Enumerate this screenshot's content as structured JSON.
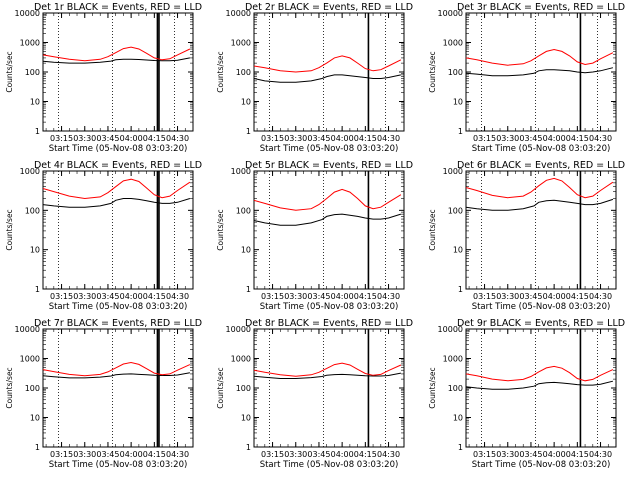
{
  "chart_data": [
    {
      "type": "line",
      "title": "Det 1r BLACK = Events, RED = LLD",
      "xlabel": "Start Time (05-Nov-08 03:03:20)",
      "ylabel": "Counts/sec",
      "y_scale": "log",
      "ylim": [
        1,
        10000
      ],
      "yticks": [
        "1",
        "10",
        "100",
        "1000",
        "10000"
      ],
      "xticks": [
        "03:15",
        "03:30",
        "03:45",
        "04:00",
        "04:15",
        "04:30"
      ],
      "series": [
        {
          "color": "#000000",
          "x": [
            "03:03",
            "03:10",
            "03:20",
            "03:30",
            "03:40",
            "03:47",
            "03:50",
            "03:55",
            "04:00",
            "04:05",
            "04:10",
            "04:15",
            "04:20",
            "04:25",
            "04:30",
            "04:38"
          ],
          "y": [
            230,
            215,
            200,
            200,
            215,
            235,
            260,
            270,
            270,
            265,
            255,
            245,
            240,
            240,
            250,
            300
          ]
        },
        {
          "color": "#ff0000",
          "x": [
            "03:03",
            "03:10",
            "03:20",
            "03:30",
            "03:40",
            "03:45",
            "03:50",
            "03:55",
            "04:00",
            "04:05",
            "04:10",
            "04:15",
            "04:20",
            "04:25",
            "04:30",
            "04:38"
          ],
          "y": [
            380,
            330,
            270,
            240,
            270,
            330,
            450,
            620,
            700,
            600,
            430,
            300,
            260,
            280,
            380,
            600
          ]
        }
      ],
      "vlines": {
        "dotted": [
          "03:13",
          "03:48",
          "04:28"
        ],
        "solid": [
          "04:17",
          "04:18"
        ]
      }
    },
    {
      "type": "line",
      "title": "Det 2r BLACK = Events, RED = LLD",
      "xlabel": "Start Time (05-Nov-08 03:03:20)",
      "ylabel": "Counts/sec",
      "y_scale": "log",
      "ylim": [
        1,
        10000
      ],
      "yticks": [
        "1",
        "10",
        "100",
        "1000",
        "10000"
      ],
      "xticks": [
        "03:15",
        "03:30",
        "03:45",
        "04:00",
        "04:15",
        "04:30"
      ],
      "series": [
        {
          "color": "#000000",
          "x": [
            "03:03",
            "03:10",
            "03:20",
            "03:30",
            "03:40",
            "03:47",
            "03:50",
            "03:55",
            "04:00",
            "04:05",
            "04:10",
            "04:15",
            "04:20",
            "04:25",
            "04:30",
            "04:38"
          ],
          "y": [
            60,
            50,
            45,
            45,
            50,
            60,
            70,
            80,
            80,
            75,
            70,
            65,
            60,
            60,
            65,
            80
          ]
        },
        {
          "color": "#ff0000",
          "x": [
            "03:03",
            "03:10",
            "03:20",
            "03:30",
            "03:40",
            "03:45",
            "03:50",
            "03:55",
            "04:00",
            "04:05",
            "04:10",
            "04:15",
            "04:20",
            "04:25",
            "04:30",
            "04:38"
          ],
          "y": [
            160,
            140,
            110,
            100,
            110,
            140,
            200,
            300,
            350,
            300,
            200,
            130,
            110,
            120,
            160,
            260
          ]
        }
      ],
      "vlines": {
        "dotted": [
          "03:13",
          "03:48",
          "04:28"
        ],
        "solid": [
          "04:17"
        ]
      }
    },
    {
      "type": "line",
      "title": "Det 3r BLACK = Events, RED = LLD",
      "xlabel": "Start Time (05-Nov-08 03:03:20)",
      "ylabel": "Counts/sec",
      "y_scale": "log",
      "ylim": [
        1,
        10000
      ],
      "yticks": [
        "1",
        "10",
        "100",
        "1000",
        "10000"
      ],
      "xticks": [
        "03:15",
        "03:30",
        "03:45",
        "04:00",
        "04:15",
        "04:30"
      ],
      "series": [
        {
          "color": "#000000",
          "x": [
            "03:03",
            "03:10",
            "03:20",
            "03:30",
            "03:40",
            "03:47",
            "03:50",
            "03:55",
            "04:00",
            "04:05",
            "04:10",
            "04:15",
            "04:20",
            "04:25",
            "04:30",
            "04:38"
          ],
          "y": [
            90,
            85,
            75,
            75,
            80,
            90,
            110,
            120,
            120,
            115,
            110,
            100,
            95,
            100,
            110,
            140
          ]
        },
        {
          "color": "#ff0000",
          "x": [
            "03:03",
            "03:10",
            "03:20",
            "03:30",
            "03:40",
            "03:45",
            "03:50",
            "03:55",
            "04:00",
            "04:05",
            "04:10",
            "04:15",
            "04:20",
            "04:25",
            "04:30",
            "04:38"
          ],
          "y": [
            300,
            260,
            200,
            170,
            190,
            240,
            350,
            500,
            580,
            500,
            350,
            220,
            180,
            200,
            280,
            450
          ]
        }
      ],
      "vlines": {
        "dotted": [
          "03:13",
          "03:48",
          "04:28"
        ],
        "solid": [
          "04:17"
        ]
      }
    },
    {
      "type": "line",
      "title": "Det 4r BLACK = Events, RED = LLD",
      "xlabel": "Start Time (05-Nov-08 03:03:20)",
      "ylabel": "Counts/sec",
      "y_scale": "log",
      "ylim": [
        1,
        1000
      ],
      "yticks": [
        "1",
        "10",
        "100",
        "1000"
      ],
      "xticks": [
        "03:15",
        "03:30",
        "03:45",
        "04:00",
        "04:15",
        "04:30"
      ],
      "series": [
        {
          "color": "#000000",
          "x": [
            "03:03",
            "03:10",
            "03:20",
            "03:30",
            "03:40",
            "03:47",
            "03:50",
            "03:55",
            "04:00",
            "04:05",
            "04:10",
            "04:15",
            "04:20",
            "04:25",
            "04:30",
            "04:38"
          ],
          "y": [
            140,
            130,
            120,
            120,
            130,
            150,
            180,
            200,
            200,
            190,
            175,
            160,
            150,
            150,
            160,
            200
          ]
        },
        {
          "color": "#ff0000",
          "x": [
            "03:03",
            "03:10",
            "03:20",
            "03:30",
            "03:40",
            "03:45",
            "03:50",
            "03:55",
            "04:00",
            "04:05",
            "04:10",
            "04:15",
            "04:20",
            "04:25",
            "04:30",
            "04:38"
          ],
          "y": [
            360,
            300,
            230,
            200,
            220,
            280,
            400,
            560,
            620,
            540,
            370,
            250,
            210,
            230,
            320,
            520
          ]
        }
      ],
      "vlines": {
        "dotted": [
          "03:13",
          "03:48",
          "04:28"
        ],
        "solid": [
          "04:17",
          "04:18"
        ]
      }
    },
    {
      "type": "line",
      "title": "Det 5r BLACK = Events, RED = LLD",
      "xlabel": "Start Time (05-Nov-08 03:03:20)",
      "ylabel": "Counts/sec",
      "y_scale": "log",
      "ylim": [
        1,
        1000
      ],
      "yticks": [
        "1",
        "10",
        "100",
        "1000"
      ],
      "xticks": [
        "03:15",
        "03:30",
        "03:45",
        "04:00",
        "04:15",
        "04:30"
      ],
      "series": [
        {
          "color": "#000000",
          "x": [
            "03:03",
            "03:10",
            "03:20",
            "03:30",
            "03:40",
            "03:47",
            "03:50",
            "03:55",
            "04:00",
            "04:05",
            "04:10",
            "04:15",
            "04:20",
            "04:25",
            "04:30",
            "04:38"
          ],
          "y": [
            55,
            48,
            42,
            42,
            48,
            58,
            70,
            78,
            80,
            75,
            70,
            64,
            60,
            60,
            64,
            80
          ]
        },
        {
          "color": "#ff0000",
          "x": [
            "03:03",
            "03:10",
            "03:20",
            "03:30",
            "03:40",
            "03:45",
            "03:50",
            "03:55",
            "04:00",
            "04:05",
            "04:10",
            "04:15",
            "04:20",
            "04:25",
            "04:30",
            "04:38"
          ],
          "y": [
            180,
            150,
            115,
            100,
            110,
            140,
            200,
            290,
            340,
            290,
            200,
            130,
            110,
            120,
            160,
            250
          ]
        }
      ],
      "vlines": {
        "dotted": [
          "03:13",
          "03:48",
          "04:28"
        ],
        "solid": [
          "04:17"
        ]
      }
    },
    {
      "type": "line",
      "title": "Det 6r BLACK = Events, RED = LLD",
      "xlabel": "Start Time (05-Nov-08 03:03:20)",
      "ylabel": "Counts/sec",
      "y_scale": "log",
      "ylim": [
        1,
        1000
      ],
      "yticks": [
        "1",
        "10",
        "100",
        "1000"
      ],
      "xticks": [
        "03:15",
        "03:30",
        "03:45",
        "04:00",
        "04:15",
        "04:30"
      ],
      "series": [
        {
          "color": "#000000",
          "x": [
            "03:03",
            "03:10",
            "03:20",
            "03:30",
            "03:40",
            "03:47",
            "03:50",
            "03:55",
            "04:00",
            "04:05",
            "04:10",
            "04:15",
            "04:20",
            "04:25",
            "04:30",
            "04:38"
          ],
          "y": [
            120,
            110,
            100,
            100,
            110,
            130,
            160,
            175,
            180,
            170,
            160,
            150,
            140,
            140,
            150,
            190
          ]
        },
        {
          "color": "#ff0000",
          "x": [
            "03:03",
            "03:10",
            "03:20",
            "03:30",
            "03:40",
            "03:45",
            "03:50",
            "03:55",
            "04:00",
            "04:05",
            "04:10",
            "04:15",
            "04:20",
            "04:25",
            "04:30",
            "04:38"
          ],
          "y": [
            380,
            320,
            240,
            210,
            230,
            290,
            420,
            580,
            650,
            560,
            380,
            250,
            210,
            230,
            320,
            520
          ]
        }
      ],
      "vlines": {
        "dotted": [
          "03:13",
          "03:48",
          "04:28"
        ],
        "solid": [
          "04:17"
        ]
      }
    },
    {
      "type": "line",
      "title": "Det 7r BLACK = Events, RED = LLD",
      "xlabel": "Start Time (05-Nov-08 03:03:20)",
      "ylabel": "Counts/sec",
      "y_scale": "log",
      "ylim": [
        1,
        10000
      ],
      "yticks": [
        "1",
        "10",
        "100",
        "1000",
        "10000"
      ],
      "xticks": [
        "03:15",
        "03:30",
        "03:45",
        "04:00",
        "04:15",
        "04:30"
      ],
      "series": [
        {
          "color": "#000000",
          "x": [
            "03:03",
            "03:10",
            "03:20",
            "03:30",
            "03:40",
            "03:47",
            "03:50",
            "03:55",
            "04:00",
            "04:05",
            "04:10",
            "04:15",
            "04:20",
            "04:25",
            "04:30",
            "04:38"
          ],
          "y": [
            260,
            240,
            220,
            220,
            235,
            255,
            280,
            295,
            300,
            290,
            280,
            270,
            265,
            265,
            275,
            330
          ]
        },
        {
          "color": "#ff0000",
          "x": [
            "03:03",
            "03:10",
            "03:20",
            "03:30",
            "03:40",
            "03:45",
            "03:50",
            "03:55",
            "04:00",
            "04:05",
            "04:10",
            "04:15",
            "04:20",
            "04:25",
            "04:30",
            "04:38"
          ],
          "y": [
            420,
            360,
            290,
            260,
            290,
            350,
            480,
            650,
            730,
            630,
            450,
            320,
            280,
            300,
            400,
            620
          ]
        }
      ],
      "vlines": {
        "dotted": [
          "03:13",
          "03:48",
          "04:28"
        ],
        "solid": [
          "04:17",
          "04:18"
        ]
      }
    },
    {
      "type": "line",
      "title": "Det 8r BLACK = Events, RED = LLD",
      "xlabel": "Start Time (05-Nov-08 03:03:20)",
      "ylabel": "Counts/sec",
      "y_scale": "log",
      "ylim": [
        1,
        10000
      ],
      "yticks": [
        "1",
        "10",
        "100",
        "1000",
        "10000"
      ],
      "xticks": [
        "03:15",
        "03:30",
        "03:45",
        "04:00",
        "04:15",
        "04:30"
      ],
      "series": [
        {
          "color": "#000000",
          "x": [
            "03:03",
            "03:10",
            "03:20",
            "03:30",
            "03:40",
            "03:47",
            "03:50",
            "03:55",
            "04:00",
            "04:05",
            "04:10",
            "04:15",
            "04:20",
            "04:25",
            "04:30",
            "04:38"
          ],
          "y": [
            250,
            230,
            210,
            210,
            225,
            245,
            270,
            285,
            290,
            280,
            270,
            260,
            255,
            255,
            265,
            320
          ]
        },
        {
          "color": "#ff0000",
          "x": [
            "03:03",
            "03:10",
            "03:20",
            "03:30",
            "03:40",
            "03:45",
            "03:50",
            "03:55",
            "04:00",
            "04:05",
            "04:10",
            "04:15",
            "04:20",
            "04:25",
            "04:30",
            "04:38"
          ],
          "y": [
            400,
            340,
            280,
            250,
            280,
            340,
            460,
            620,
            700,
            600,
            430,
            310,
            270,
            290,
            390,
            600
          ]
        }
      ],
      "vlines": {
        "dotted": [
          "03:13",
          "03:48",
          "04:28"
        ],
        "solid": [
          "04:17"
        ]
      }
    },
    {
      "type": "line",
      "title": "Det 9r BLACK = Events, RED = LLD",
      "xlabel": "Start Time (05-Nov-08 03:03:20)",
      "ylabel": "Counts/sec",
      "y_scale": "log",
      "ylim": [
        1,
        10000
      ],
      "yticks": [
        "1",
        "10",
        "100",
        "1000",
        "10000"
      ],
      "xticks": [
        "03:15",
        "03:30",
        "03:45",
        "04:00",
        "04:15",
        "04:30"
      ],
      "series": [
        {
          "color": "#000000",
          "x": [
            "03:03",
            "03:10",
            "03:20",
            "03:30",
            "03:40",
            "03:47",
            "03:50",
            "03:55",
            "04:00",
            "04:05",
            "04:10",
            "04:15",
            "04:20",
            "04:25",
            "04:30",
            "04:38"
          ],
          "y": [
            110,
            100,
            90,
            90,
            100,
            115,
            140,
            150,
            155,
            148,
            140,
            130,
            125,
            125,
            135,
            170
          ]
        },
        {
          "color": "#ff0000",
          "x": [
            "03:03",
            "03:10",
            "03:20",
            "03:30",
            "03:40",
            "03:45",
            "03:50",
            "03:55",
            "04:00",
            "04:05",
            "04:10",
            "04:15",
            "04:20",
            "04:25",
            "04:30",
            "04:38"
          ],
          "y": [
            300,
            260,
            200,
            175,
            195,
            245,
            350,
            480,
            540,
            470,
            330,
            210,
            175,
            195,
            270,
            420
          ]
        }
      ],
      "vlines": {
        "dotted": [
          "03:13",
          "03:48",
          "04:28"
        ],
        "solid": [
          "04:17"
        ]
      }
    }
  ]
}
